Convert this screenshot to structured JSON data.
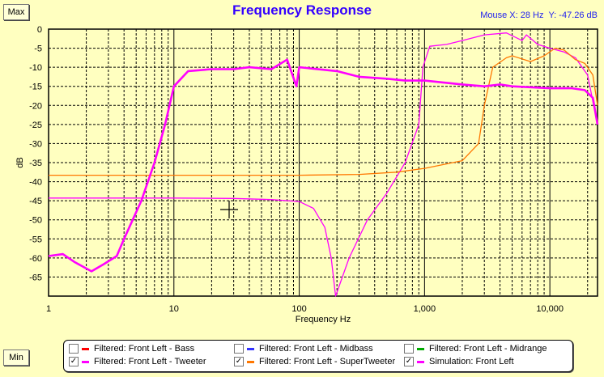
{
  "buttons": {
    "max": "Max",
    "min": "Min"
  },
  "mouse": {
    "x": "Mouse X: 28 Hz",
    "y": "Y: -47.26 dB"
  },
  "chart_data": {
    "type": "line",
    "title": "Frequency Response",
    "xlabel": "Frequency Hz",
    "ylabel": "dB",
    "xscale": "log",
    "xlim": [
      1,
      24000
    ],
    "ylim": [
      -70,
      0
    ],
    "xticks": [
      1,
      10,
      100,
      1000,
      10000
    ],
    "xtick_labels": [
      "1",
      "10",
      "100",
      "1,000",
      "10,000"
    ],
    "yticks": [
      0,
      -5,
      -10,
      -15,
      -20,
      -25,
      -30,
      -35,
      -40,
      -45,
      -50,
      -55,
      -60,
      -65
    ],
    "grid": true,
    "legend_position": "bottom",
    "legend": [
      {
        "label": "Filtered: Front Left - Bass",
        "color": "#ff0000",
        "checked": false
      },
      {
        "label": "Filtered: Front Left - Midbass",
        "color": "#3333ff",
        "checked": false
      },
      {
        "label": "Filtered: Front Left - Midrange",
        "color": "#00aa00",
        "checked": false
      },
      {
        "label": "Filtered: Front Left - Tweeter",
        "color": "#ff00ff",
        "checked": true
      },
      {
        "label": "Filtered: Front Left - SuperTweeter",
        "color": "#ff7700",
        "checked": true
      },
      {
        "label": "Simulation: Front Left",
        "color": "#ff00ff",
        "checked": true
      }
    ],
    "series": [
      {
        "name": "Filtered: Front Left - Tweeter",
        "color": "#ff00ff",
        "width": 1.3,
        "x": [
          1,
          10,
          30,
          60,
          100,
          130,
          160,
          180,
          195,
          250,
          350,
          500,
          700,
          900,
          970,
          1100,
          1500,
          2000,
          3000,
          4500,
          5200,
          6000,
          6500,
          8000,
          10000,
          13000,
          16000,
          20000,
          24000
        ],
        "y": [
          -44.3,
          -44.3,
          -44.4,
          -44.7,
          -45.2,
          -47,
          -52,
          -60,
          -70,
          -60,
          -50,
          -43,
          -35,
          -25,
          -10,
          -4.5,
          -4,
          -3,
          -1.5,
          -1,
          -2,
          -3,
          -1.5,
          -4,
          -5,
          -6,
          -7.5,
          -12,
          -25
        ]
      },
      {
        "name": "Filtered: Front Left - SuperTweeter",
        "color": "#ff7700",
        "width": 1.3,
        "x": [
          1,
          100,
          300,
          600,
          1000,
          2000,
          2700,
          3000,
          3500,
          4500,
          5000,
          7000,
          9000,
          11000,
          13000,
          16000,
          19000,
          22000,
          24000
        ],
        "y": [
          -38.3,
          -38.3,
          -38.1,
          -37.5,
          -36.5,
          -34.5,
          -30,
          -20,
          -10,
          -7.5,
          -7,
          -8.5,
          -7,
          -5,
          -5.5,
          -8,
          -9,
          -12,
          -20
        ]
      },
      {
        "name": "Simulation: Front Left",
        "color": "#ff00ff",
        "width": 2.6,
        "x": [
          1,
          1.3,
          1.6,
          2.2,
          2.8,
          3.5,
          4,
          5.5,
          7,
          8.5,
          10,
          13,
          20,
          30,
          40,
          60,
          80,
          95,
          100,
          200,
          300,
          500,
          700,
          1000,
          2000,
          3000,
          4000,
          5000,
          10000,
          15000,
          19000,
          22000,
          24000
        ],
        "y": [
          -59.5,
          -59,
          -61,
          -63.5,
          -61.5,
          -59.5,
          -55,
          -45,
          -35,
          -25,
          -15,
          -11,
          -10.5,
          -10.5,
          -10,
          -10.5,
          -8,
          -15,
          -10,
          -11,
          -12.5,
          -13,
          -13.5,
          -13.5,
          -14.5,
          -15,
          -14.5,
          -15,
          -15.5,
          -15.5,
          -16,
          -18,
          -25
        ]
      }
    ]
  }
}
